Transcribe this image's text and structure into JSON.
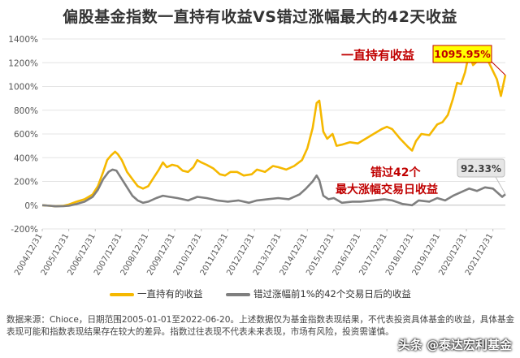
{
  "chart_data": {
    "type": "line",
    "title": "偏股基金指数一直持有收益VS错过涨幅最大的42天收益",
    "y_ticks": [
      "1400%",
      "1200%",
      "1000%",
      "800%",
      "600%",
      "400%",
      "200%",
      "0%",
      "-200%"
    ],
    "ylim": [
      -200,
      1400
    ],
    "x_ticks": [
      "2004/12/31",
      "2005/12/31",
      "2006/12/31",
      "2007/12/31",
      "2008/12/31",
      "2009/12/31",
      "2010/12/31",
      "2011/12/31",
      "2012/12/31",
      "2013/12/31",
      "2014/12/31",
      "2015/12/31",
      "2016/12/31",
      "2017/12/31",
      "2018/12/31",
      "2019/12/31",
      "2020/12/31",
      "2021/12/31"
    ],
    "xlim": [
      2005.0,
      2022.47
    ],
    "series": [
      {
        "name": "一直持有的收益",
        "color": "#F5B800",
        "points": [
          [
            2005.0,
            0
          ],
          [
            2005.3,
            -5
          ],
          [
            2005.5,
            -10
          ],
          [
            2005.8,
            -5
          ],
          [
            2006.0,
            5
          ],
          [
            2006.3,
            30
          ],
          [
            2006.6,
            50
          ],
          [
            2006.9,
            90
          ],
          [
            2007.1,
            160
          ],
          [
            2007.3,
            280
          ],
          [
            2007.45,
            380
          ],
          [
            2007.6,
            420
          ],
          [
            2007.75,
            450
          ],
          [
            2007.85,
            430
          ],
          [
            2008.0,
            380
          ],
          [
            2008.2,
            280
          ],
          [
            2008.4,
            220
          ],
          [
            2008.6,
            160
          ],
          [
            2008.8,
            140
          ],
          [
            2009.0,
            160
          ],
          [
            2009.2,
            230
          ],
          [
            2009.4,
            300
          ],
          [
            2009.55,
            360
          ],
          [
            2009.7,
            320
          ],
          [
            2009.9,
            340
          ],
          [
            2010.1,
            330
          ],
          [
            2010.3,
            290
          ],
          [
            2010.5,
            280
          ],
          [
            2010.7,
            320
          ],
          [
            2010.85,
            380
          ],
          [
            2011.0,
            360
          ],
          [
            2011.2,
            340
          ],
          [
            2011.45,
            310
          ],
          [
            2011.7,
            260
          ],
          [
            2011.9,
            250
          ],
          [
            2012.1,
            280
          ],
          [
            2012.35,
            280
          ],
          [
            2012.6,
            250
          ],
          [
            2012.9,
            260
          ],
          [
            2013.1,
            300
          ],
          [
            2013.4,
            280
          ],
          [
            2013.7,
            330
          ],
          [
            2013.9,
            320
          ],
          [
            2014.2,
            300
          ],
          [
            2014.5,
            330
          ],
          [
            2014.8,
            380
          ],
          [
            2015.0,
            480
          ],
          [
            2015.2,
            650
          ],
          [
            2015.35,
            860
          ],
          [
            2015.45,
            880
          ],
          [
            2015.6,
            620
          ],
          [
            2015.75,
            560
          ],
          [
            2015.95,
            600
          ],
          [
            2016.1,
            500
          ],
          [
            2016.3,
            510
          ],
          [
            2016.6,
            530
          ],
          [
            2016.9,
            520
          ],
          [
            2017.2,
            560
          ],
          [
            2017.5,
            600
          ],
          [
            2017.8,
            640
          ],
          [
            2018.0,
            660
          ],
          [
            2018.2,
            640
          ],
          [
            2018.5,
            560
          ],
          [
            2018.8,
            490
          ],
          [
            2018.95,
            460
          ],
          [
            2019.1,
            540
          ],
          [
            2019.3,
            600
          ],
          [
            2019.6,
            590
          ],
          [
            2019.9,
            680
          ],
          [
            2020.1,
            700
          ],
          [
            2020.3,
            760
          ],
          [
            2020.5,
            900
          ],
          [
            2020.65,
            1030
          ],
          [
            2020.8,
            1020
          ],
          [
            2020.95,
            1120
          ],
          [
            2021.1,
            1280
          ],
          [
            2021.25,
            1180
          ],
          [
            2021.45,
            1220
          ],
          [
            2021.65,
            1240
          ],
          [
            2021.85,
            1200
          ],
          [
            2022.0,
            1130
          ],
          [
            2022.15,
            1060
          ],
          [
            2022.3,
            920
          ],
          [
            2022.47,
            1096
          ]
        ]
      },
      {
        "name": "错过涨幅前1%的42个交易日后的收益",
        "color": "#7F7F7F",
        "points": [
          [
            2005.0,
            0
          ],
          [
            2005.3,
            -5
          ],
          [
            2005.5,
            -10
          ],
          [
            2005.8,
            -8
          ],
          [
            2006.0,
            -5
          ],
          [
            2006.3,
            10
          ],
          [
            2006.6,
            30
          ],
          [
            2006.9,
            70
          ],
          [
            2007.1,
            130
          ],
          [
            2007.3,
            220
          ],
          [
            2007.5,
            280
          ],
          [
            2007.65,
            300
          ],
          [
            2007.8,
            290
          ],
          [
            2008.0,
            220
          ],
          [
            2008.2,
            150
          ],
          [
            2008.4,
            80
          ],
          [
            2008.6,
            40
          ],
          [
            2008.8,
            20
          ],
          [
            2009.0,
            30
          ],
          [
            2009.3,
            60
          ],
          [
            2009.55,
            80
          ],
          [
            2009.8,
            70
          ],
          [
            2010.1,
            60
          ],
          [
            2010.5,
            40
          ],
          [
            2010.85,
            70
          ],
          [
            2011.2,
            60
          ],
          [
            2011.6,
            40
          ],
          [
            2012.0,
            30
          ],
          [
            2012.4,
            40
          ],
          [
            2012.8,
            20
          ],
          [
            2013.1,
            40
          ],
          [
            2013.5,
            50
          ],
          [
            2013.9,
            60
          ],
          [
            2014.3,
            50
          ],
          [
            2014.7,
            90
          ],
          [
            2014.95,
            140
          ],
          [
            2015.2,
            200
          ],
          [
            2015.35,
            250
          ],
          [
            2015.45,
            210
          ],
          [
            2015.6,
            80
          ],
          [
            2015.8,
            50
          ],
          [
            2016.0,
            60
          ],
          [
            2016.3,
            20
          ],
          [
            2016.7,
            30
          ],
          [
            2017.0,
            30
          ],
          [
            2017.5,
            40
          ],
          [
            2017.9,
            50
          ],
          [
            2018.2,
            40
          ],
          [
            2018.6,
            10
          ],
          [
            2018.95,
            0
          ],
          [
            2019.2,
            40
          ],
          [
            2019.6,
            30
          ],
          [
            2019.9,
            60
          ],
          [
            2020.2,
            40
          ],
          [
            2020.5,
            80
          ],
          [
            2020.8,
            110
          ],
          [
            2021.1,
            140
          ],
          [
            2021.4,
            120
          ],
          [
            2021.7,
            150
          ],
          [
            2022.0,
            140
          ],
          [
            2022.2,
            100
          ],
          [
            2022.35,
            70
          ],
          [
            2022.47,
            92
          ]
        ]
      }
    ],
    "annotations": [
      {
        "text": "一直持有收益",
        "color": "#C00000"
      },
      {
        "text": "1095.95%",
        "color": "#C00000",
        "box_fill": "#FFFF00",
        "box_border": "#C00000"
      },
      {
        "text": "错过42个",
        "color": "#C00000"
      },
      {
        "text": "最大涨幅交易日收益",
        "color": "#C00000"
      },
      {
        "text": "92.33%",
        "color": "#404040",
        "box_fill": "#E6E6E6",
        "box_border": "#BFBFBF"
      }
    ]
  },
  "footnote": "数据来源：Chioce，日期范围2005-01-01至2022-06-20。上述数据仅为基金指数表现结果，不代表投资具体基金的收益，具体基金表现可能和指数表现结果存在较大的差异。指数过往表现不代表未来表现，市场有风险，投资需谨慎。",
  "watermark": "头条 @泰达宏利基金"
}
